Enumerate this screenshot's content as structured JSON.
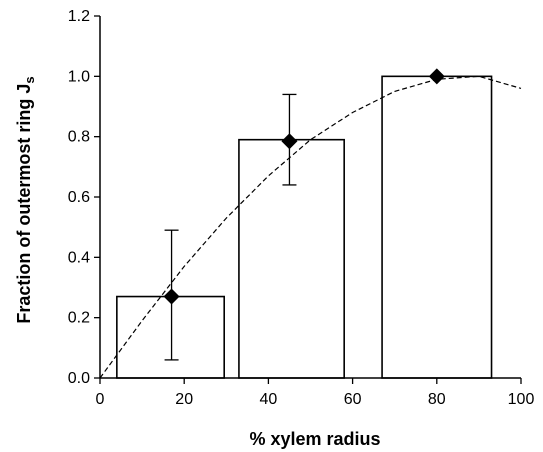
{
  "chart_data": {
    "type": "bar",
    "xlabel": "% xylem radius",
    "ylabel": "Fraction of outermost ring J",
    "ylabel_subscript": "s",
    "xlim": [
      0,
      100
    ],
    "ylim": [
      0,
      1.2
    ],
    "x_ticks": [
      "0",
      "20",
      "40",
      "60",
      "80",
      "100"
    ],
    "y_ticks": [
      "0.0",
      "0.2",
      "0.4",
      "0.6",
      "0.8",
      "1.0",
      "1.2"
    ],
    "grid": false,
    "bars": [
      {
        "x_start": 4,
        "x_end": 29.5,
        "value": 0.27
      },
      {
        "x_start": 33,
        "x_end": 58,
        "value": 0.79
      },
      {
        "x_start": 67,
        "x_end": 93,
        "value": 1.0
      }
    ],
    "points": [
      {
        "x": 17,
        "y": 0.27,
        "err_low": 0.06,
        "err_high": 0.49
      },
      {
        "x": 45,
        "y": 0.785,
        "err_low": 0.64,
        "err_high": 0.94
      },
      {
        "x": 80,
        "y": 1.0
      }
    ],
    "fit_curve": {
      "style": "dashed",
      "x": [
        0,
        10,
        20,
        30,
        40,
        50,
        60,
        70,
        80,
        90,
        100
      ],
      "y": [
        0.0,
        0.19,
        0.37,
        0.53,
        0.67,
        0.79,
        0.88,
        0.95,
        0.99,
        1.0,
        0.96
      ]
    },
    "colors": {
      "bar_fill": "#ffffff",
      "stroke": "#000000",
      "marker": "#000000"
    }
  }
}
